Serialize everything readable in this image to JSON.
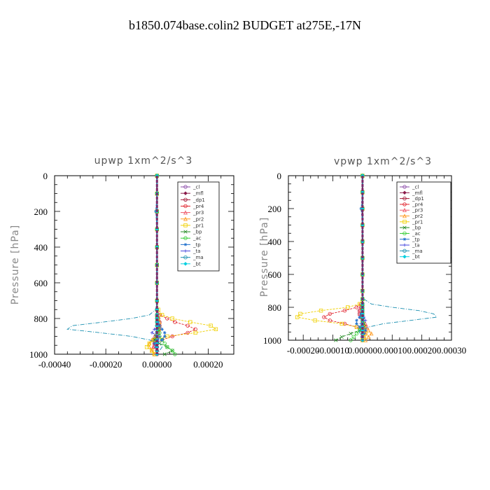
{
  "figure_title": "b1850.074base.colin2  BUDGET at275E,-17N",
  "colors": {
    "_cl": "#8a4aa8",
    "_mfl": "#8b1a4a",
    "_dp1": "#a01030",
    "_pr4": "#e0202a",
    "_pr3": "#ee5566",
    "_pr2": "#ff9a20",
    "_pr1": "#f0d000",
    "_bp": "#228b22",
    "_ac": "#33cc33",
    "_tp": "#1e6fcc",
    "_ta": "#4444dd",
    "_ma": "#1a8fb0",
    "_bt": "#00d0e0"
  },
  "chart_data": [
    {
      "type": "line",
      "title": "upwp   1xm^2/s^3",
      "ylabel": "Pressure [hPa]",
      "xlabel": "",
      "xlim": [
        -0.0004,
        0.0003
      ],
      "ylim": [
        1000,
        0
      ],
      "xticks": [
        "-0.00040",
        "-0.00020",
        "0.00000",
        "0.00020"
      ],
      "xtick_values": [
        -0.0004,
        -0.0002,
        0.0,
        0.0002
      ],
      "yticks": [
        "0",
        "200",
        "400",
        "600",
        "800",
        "1000"
      ],
      "legend_position": "top-right",
      "pressure": [
        0,
        100,
        200,
        300,
        400,
        500,
        600,
        700,
        750,
        780,
        800,
        820,
        840,
        860,
        880,
        900,
        920,
        940,
        960,
        980,
        1000
      ],
      "series": [
        {
          "name": "_cl",
          "values": [
            0,
            0,
            0,
            0,
            0,
            0,
            0,
            0,
            0,
            0,
            0,
            0,
            0,
            0,
            0,
            0,
            0,
            0,
            0,
            0,
            0
          ]
        },
        {
          "name": "_mfl",
          "values": [
            0,
            0,
            0,
            0,
            0,
            0,
            0,
            0,
            0,
            0,
            0,
            0,
            0,
            0,
            0,
            0,
            0,
            0,
            0,
            0,
            0
          ]
        },
        {
          "name": "_dp1",
          "values": [
            0,
            0,
            0,
            0,
            0,
            0,
            0,
            0,
            0,
            0,
            5e-06,
            1e-05,
            1e-05,
            8e-06,
            5e-06,
            0,
            -5e-06,
            -1e-05,
            0,
            0,
            0
          ]
        },
        {
          "name": "_pr4",
          "values": [
            0,
            0,
            0,
            0,
            0,
            0,
            0,
            0,
            0,
            1e-05,
            4e-05,
            7e-05,
            0.00012,
            0.00015,
            0.00012,
            6e-05,
            2e-05,
            0,
            -1e-05,
            0,
            0
          ]
        },
        {
          "name": "_pr3",
          "values": [
            0,
            0,
            0,
            0,
            0,
            0,
            0,
            0,
            0,
            0,
            5e-06,
            1e-05,
            1e-05,
            5e-06,
            0,
            -1e-05,
            -1.5e-05,
            -1e-05,
            -1.5e-05,
            -2e-05,
            -1e-05
          ]
        },
        {
          "name": "_pr2",
          "values": [
            0,
            0,
            0,
            0,
            0,
            0,
            0,
            0,
            0,
            0,
            5e-06,
            1e-05,
            1e-05,
            8e-06,
            5e-06,
            0,
            -2e-05,
            -3e-05,
            -3e-05,
            -2e-05,
            -1e-05
          ]
        },
        {
          "name": "_pr1",
          "values": [
            0,
            0,
            0,
            0,
            0,
            0,
            0,
            0,
            5e-06,
            2e-05,
            6e-05,
            0.00013,
            0.00021,
            0.00023,
            0.00015,
            4e-05,
            -1e-05,
            -3e-05,
            -4e-05,
            -2e-05,
            -1e-05
          ]
        },
        {
          "name": "_bp",
          "values": [
            0,
            0,
            0,
            0,
            0,
            0,
            0,
            0,
            0,
            0,
            0,
            0,
            5e-06,
            5e-06,
            0,
            -5e-06,
            -1e-05,
            1e-05,
            4e-05,
            6e-05,
            3e-05
          ]
        },
        {
          "name": "_ac",
          "values": [
            0,
            0,
            0,
            0,
            0,
            0,
            0,
            0,
            0,
            0,
            0,
            0,
            0,
            5e-06,
            1e-05,
            1e-05,
            2e-05,
            3e-05,
            4e-05,
            6e-05,
            7e-05
          ]
        },
        {
          "name": "_tp",
          "values": [
            0,
            0,
            -5e-06,
            0,
            0,
            0,
            0,
            0,
            0,
            0,
            0,
            5e-06,
            1e-05,
            2e-05,
            3e-05,
            3e-05,
            2e-05,
            -1e-05,
            -5e-06,
            0,
            0
          ]
        },
        {
          "name": "_ta",
          "values": [
            0,
            0,
            0,
            0,
            0,
            0,
            0,
            0,
            0,
            0,
            0,
            0,
            5e-06,
            -1e-05,
            -2e-05,
            1e-05,
            5e-06,
            0,
            0,
            0,
            0
          ]
        },
        {
          "name": "_ma",
          "values": [
            0,
            0,
            0,
            0,
            0,
            0,
            0,
            0,
            -5e-06,
            -3e-05,
            -0.0001,
            -0.00021,
            -0.00033,
            -0.00035,
            -0.00022,
            -0.0001,
            -3e-05,
            1e-05,
            2e-05,
            1e-05,
            0
          ]
        },
        {
          "name": "_bt",
          "values": [
            0,
            0,
            0,
            0,
            0,
            0,
            0,
            0,
            0,
            0,
            0,
            0,
            0,
            0,
            0,
            0,
            0,
            0,
            0,
            0,
            0
          ]
        }
      ]
    },
    {
      "type": "line",
      "title": "vpwp   1xm^2/s^3",
      "ylabel": "Pressure [hPa]",
      "xlabel": "",
      "xlim": [
        -0.00025,
        0.0003
      ],
      "ylim": [
        1000,
        0
      ],
      "xticks": [
        "-0.00020",
        "-0.00010",
        "0.00000",
        "0.00010",
        "0.00020",
        "0.00030"
      ],
      "xtick_values": [
        -0.0002,
        -0.0001,
        0.0,
        0.0001,
        0.0002,
        0.0003
      ],
      "yticks": [
        "0",
        "200",
        "400",
        "600",
        "800",
        "1000"
      ],
      "legend_position": "top-right",
      "pressure": [
        0,
        100,
        200,
        300,
        400,
        500,
        600,
        700,
        750,
        780,
        800,
        820,
        840,
        860,
        880,
        900,
        920,
        940,
        960,
        980,
        1000
      ],
      "series": [
        {
          "name": "_cl",
          "values": [
            0,
            0,
            0,
            0,
            0,
            0,
            0,
            0,
            0,
            0,
            0,
            0,
            0,
            0,
            0,
            0,
            0,
            0,
            0,
            0,
            0
          ]
        },
        {
          "name": "_mfl",
          "values": [
            0,
            0,
            0,
            0,
            0,
            0,
            0,
            0,
            0,
            0,
            0,
            0,
            0,
            0,
            0,
            0,
            0,
            0,
            0,
            0,
            0
          ]
        },
        {
          "name": "_dp1",
          "values": [
            0,
            0,
            0,
            0,
            0,
            0,
            0,
            0,
            0,
            0,
            -5e-06,
            -1e-05,
            -1e-05,
            -5e-06,
            0,
            0,
            0,
            0,
            0,
            0,
            0
          ]
        },
        {
          "name": "_pr4",
          "values": [
            0,
            0,
            0,
            0,
            0,
            0,
            0,
            0,
            0,
            -5e-06,
            -2e-05,
            -6e-05,
            -0.00011,
            -0.00013,
            -0.00011,
            -6e-05,
            -2e-05,
            0,
            5e-06,
            0,
            0
          ]
        },
        {
          "name": "_pr3",
          "values": [
            0,
            0,
            0,
            0,
            0,
            0,
            0,
            0,
            0,
            0,
            -5e-06,
            -1e-05,
            -1e-05,
            -5e-06,
            0,
            1e-05,
            1.5e-05,
            1e-05,
            1e-05,
            5e-06,
            0
          ]
        },
        {
          "name": "_pr2",
          "values": [
            0,
            0,
            0,
            0,
            0,
            0,
            0,
            0,
            0,
            0,
            0,
            0,
            0,
            0,
            0,
            5e-06,
            1e-05,
            2e-05,
            3e-05,
            2e-05,
            1e-05
          ]
        },
        {
          "name": "_pr1",
          "values": [
            0,
            0,
            0,
            0,
            0,
            0,
            0,
            0,
            0,
            -1e-05,
            -5e-05,
            -0.00014,
            -0.00021,
            -0.00022,
            -0.00016,
            -7e-05,
            -2e-05,
            5e-06,
            1e-05,
            5e-06,
            0
          ]
        },
        {
          "name": "_bp",
          "values": [
            0,
            0,
            0,
            0,
            0,
            0,
            0,
            0,
            0,
            0,
            0,
            0,
            0,
            0,
            0,
            5e-06,
            5e-06,
            -1e-05,
            -4e-05,
            -7e-05,
            -9e-05
          ]
        },
        {
          "name": "_ac",
          "values": [
            0,
            0,
            0,
            0,
            0,
            0,
            0,
            0,
            0,
            0,
            0,
            0,
            0,
            0,
            0,
            0,
            -5e-06,
            -1e-05,
            -2e-05,
            -3e-05,
            -4e-05
          ]
        },
        {
          "name": "_tp",
          "values": [
            0,
            0,
            -5e-06,
            0,
            0,
            0,
            0,
            0,
            0,
            0,
            0,
            0,
            -5e-06,
            -1e-05,
            -2e-05,
            -2e-05,
            -1e-05,
            1e-05,
            5e-06,
            0,
            0
          ]
        },
        {
          "name": "_ta",
          "values": [
            0,
            0,
            0,
            0,
            0,
            0,
            0,
            0,
            0,
            0,
            0,
            0,
            0,
            5e-06,
            1e-05,
            -5e-06,
            0,
            0,
            0,
            0,
            0
          ]
        },
        {
          "name": "_ma",
          "values": [
            0,
            0,
            0,
            0,
            0,
            0,
            0,
            0,
            5e-06,
            3e-05,
            0.0001,
            0.00019,
            0.00024,
            0.00025,
            0.00016,
            7e-05,
            2e-05,
            -1e-05,
            -1e-05,
            0,
            0
          ]
        },
        {
          "name": "_bt",
          "values": [
            0,
            0,
            0,
            0,
            0,
            0,
            0,
            0,
            0,
            0,
            0,
            0,
            0,
            0,
            0,
            0,
            0,
            0,
            0,
            0,
            0
          ]
        }
      ]
    }
  ]
}
